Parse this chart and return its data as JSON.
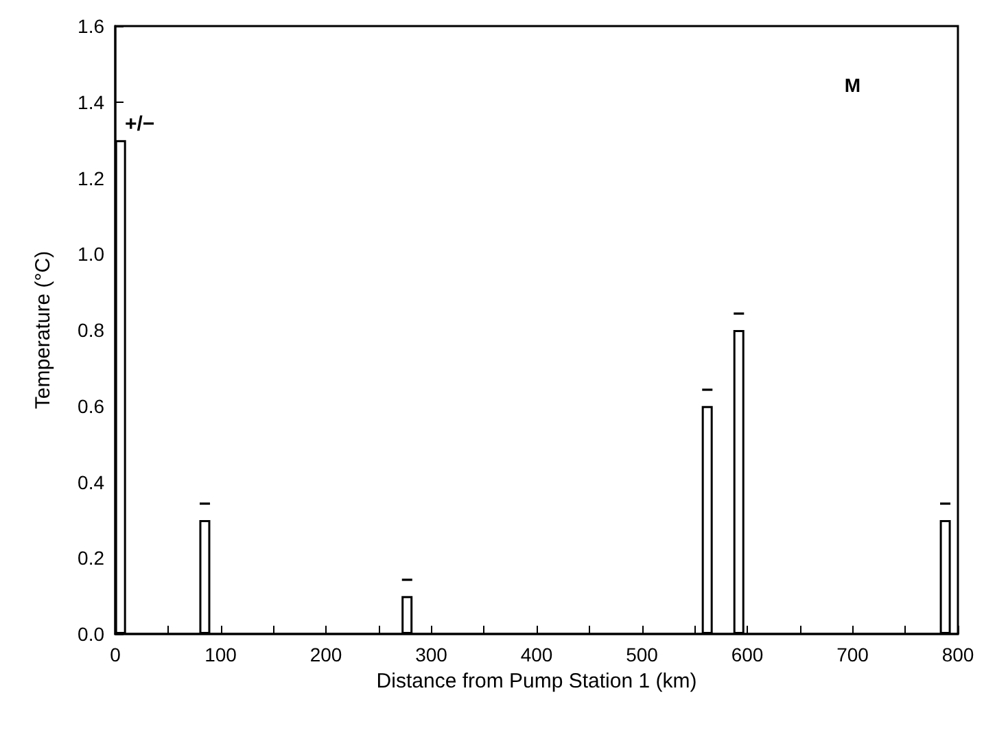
{
  "chart_data": {
    "type": "bar",
    "xlabel": "Distance from Pump Station 1 (km)",
    "ylabel": "Temperature (°C)",
    "x": [
      5,
      85,
      277,
      562,
      592,
      788
    ],
    "values": [
      1.3,
      0.3,
      0.1,
      0.6,
      0.8,
      0.3
    ],
    "value_labels": [
      "+/−",
      "−",
      "−",
      "−",
      "−",
      "−"
    ],
    "color": "#ffffff",
    "xlim": [
      0,
      800
    ],
    "xticks": [
      0,
      {
        "value": 50,
        "label": null
      },
      100,
      {
        "value": 150,
        "label": null
      },
      200,
      {
        "value": 250,
        "label": null
      },
      300,
      {
        "value": 350,
        "label": null
      },
      400,
      {
        "value": 450,
        "label": null
      },
      500,
      {
        "value": 550,
        "label": null
      },
      600,
      {
        "value": 650,
        "label": null
      },
      700,
      {
        "value": 750,
        "label": null
      },
      800
    ],
    "ylim": [
      0,
      1.6
    ],
    "yticks": [
      {
        "value": 0,
        "label": "0.0"
      },
      {
        "value": 0.2,
        "label": "0.2"
      },
      {
        "value": 0.4,
        "label": "0.4"
      },
      {
        "value": 0.6,
        "label": "0.6"
      },
      {
        "value": 0.8,
        "label": "0.8"
      },
      {
        "value": 1.0,
        "label": "1.0"
      },
      {
        "value": 1.2,
        "label": "1.2"
      },
      {
        "value": 1.4,
        "label": "1.4"
      },
      {
        "value": 1.6,
        "label": "1.6"
      }
    ],
    "annotations": [
      "M"
    ],
    "grid": false
  }
}
